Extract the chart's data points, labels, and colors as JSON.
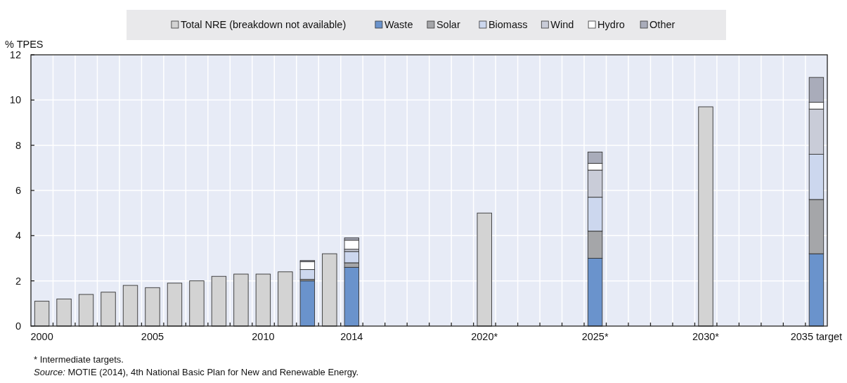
{
  "chart_data": {
    "type": "bar",
    "stacked": true,
    "ylabel": "% TPES",
    "categories": [
      "2000",
      null,
      null,
      null,
      null,
      "2005",
      null,
      null,
      null,
      null,
      "2010",
      null,
      null,
      null,
      "2014",
      null,
      null,
      null,
      null,
      null,
      "2020*",
      null,
      null,
      null,
      null,
      "2025*",
      null,
      null,
      null,
      null,
      "2030*",
      null,
      null,
      null,
      null,
      "2035 target"
    ],
    "series": [
      {
        "name": "Total NRE (breakdown not available)",
        "color": "#d3d3d3",
        "values": [
          1.1,
          1.2,
          1.4,
          1.5,
          1.8,
          1.7,
          1.9,
          2.0,
          2.2,
          2.3,
          2.3,
          2.4,
          null,
          3.2,
          null,
          null,
          null,
          null,
          null,
          null,
          5.0,
          null,
          null,
          null,
          null,
          null,
          null,
          null,
          null,
          null,
          9.7,
          null,
          null,
          null,
          null,
          null
        ]
      },
      {
        "name": "Waste",
        "color": "#6a93cc",
        "values": [
          null,
          null,
          null,
          null,
          null,
          null,
          null,
          null,
          null,
          null,
          null,
          null,
          2.0,
          null,
          2.6,
          null,
          null,
          null,
          null,
          null,
          null,
          null,
          null,
          null,
          null,
          3.0,
          null,
          null,
          null,
          null,
          null,
          null,
          null,
          null,
          null,
          3.2
        ]
      },
      {
        "name": "Solar",
        "color": "#a5a6a9",
        "values": [
          null,
          null,
          null,
          null,
          null,
          null,
          null,
          null,
          null,
          null,
          null,
          null,
          0.07,
          null,
          0.2,
          null,
          null,
          null,
          null,
          null,
          null,
          null,
          null,
          null,
          null,
          1.2,
          null,
          null,
          null,
          null,
          null,
          null,
          null,
          null,
          null,
          2.4
        ]
      },
      {
        "name": "Biomass",
        "color": "#ccd7ee",
        "values": [
          null,
          null,
          null,
          null,
          null,
          null,
          null,
          null,
          null,
          null,
          null,
          null,
          0.43,
          null,
          0.5,
          null,
          null,
          null,
          null,
          null,
          null,
          null,
          null,
          null,
          null,
          1.5,
          null,
          null,
          null,
          null,
          null,
          null,
          null,
          null,
          null,
          2.0
        ]
      },
      {
        "name": "Wind",
        "color": "#c9ccd8",
        "values": [
          null,
          null,
          null,
          null,
          null,
          null,
          null,
          null,
          null,
          null,
          null,
          null,
          null,
          null,
          0.1,
          null,
          null,
          null,
          null,
          null,
          null,
          null,
          null,
          null,
          null,
          1.2,
          null,
          null,
          null,
          null,
          null,
          null,
          null,
          null,
          null,
          2.0
        ]
      },
      {
        "name": "Hydro",
        "color": "#ffffff",
        "values": [
          null,
          null,
          null,
          null,
          null,
          null,
          null,
          null,
          null,
          null,
          null,
          null,
          0.35,
          null,
          0.4,
          null,
          null,
          null,
          null,
          null,
          null,
          null,
          null,
          null,
          null,
          0.3,
          null,
          null,
          null,
          null,
          null,
          null,
          null,
          null,
          null,
          0.3
        ]
      },
      {
        "name": "Other",
        "color": "#a9acba",
        "values": [
          null,
          null,
          null,
          null,
          null,
          null,
          null,
          null,
          null,
          null,
          null,
          null,
          0.05,
          null,
          0.1,
          null,
          null,
          null,
          null,
          null,
          null,
          null,
          null,
          null,
          null,
          0.5,
          null,
          null,
          null,
          null,
          null,
          null,
          null,
          null,
          null,
          1.1
        ]
      }
    ],
    "ylim": [
      0,
      12
    ],
    "yticks": [
      0,
      2,
      4,
      6,
      8,
      10,
      12
    ],
    "grid": true,
    "legend": "top",
    "annotations": [
      "* Intermediate targets.",
      "Source: MOTIE (2014), 4th National Basic Plan for New and Renewable Energy."
    ]
  }
}
